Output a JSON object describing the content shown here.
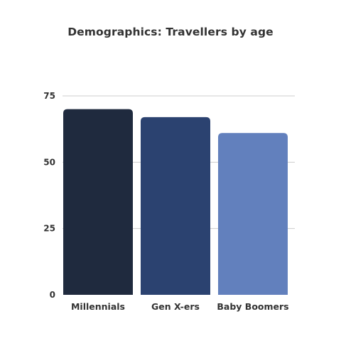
{
  "chart_data": {
    "type": "bar",
    "title": "Demographics: Travellers by age",
    "xlabel": "",
    "ylabel": "",
    "categories": [
      "Millennials",
      "Gen X-ers",
      "Baby Boomers"
    ],
    "values": [
      70,
      67,
      61
    ],
    "colors": [
      "#1f2a3e",
      "#2b4270",
      "#6280bd"
    ],
    "yticks": [
      0,
      25,
      50,
      75
    ],
    "ylim": [
      0,
      75
    ],
    "grid": true,
    "gridColor": "#cccccc",
    "textColor": "#333333",
    "legend": "none"
  }
}
